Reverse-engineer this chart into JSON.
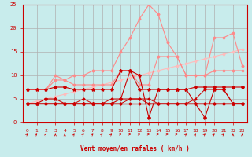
{
  "x": [
    0,
    1,
    2,
    3,
    4,
    5,
    6,
    7,
    8,
    9,
    10,
    11,
    12,
    13,
    14,
    15,
    16,
    17,
    18,
    19,
    20,
    21,
    22,
    23
  ],
  "line1": [
    4,
    4,
    4,
    4,
    4,
    4,
    4,
    4,
    4,
    4,
    4,
    4,
    4,
    4,
    4,
    4,
    4,
    4,
    4,
    4,
    4,
    4,
    4,
    4
  ],
  "line2": [
    7,
    7,
    7,
    7.5,
    7.5,
    7,
    7,
    7,
    7,
    7,
    11,
    11,
    7,
    7,
    7,
    7,
    7,
    7,
    7.5,
    7.5,
    7.5,
    7.5,
    7.5,
    7.5
  ],
  "line3": [
    4,
    4,
    5,
    5,
    4,
    4,
    4,
    4,
    4,
    4,
    5,
    11,
    10,
    1,
    7,
    7,
    7,
    7,
    4,
    1,
    7,
    7,
    4,
    4
  ],
  "line4": [
    4,
    4,
    4,
    4,
    4,
    4,
    4,
    4,
    4,
    4,
    4,
    5,
    5,
    4,
    4,
    4,
    4,
    4,
    4,
    4,
    4,
    4,
    4,
    4
  ],
  "line5": [
    4,
    4,
    4,
    4,
    4,
    4,
    5,
    4,
    4,
    5,
    5,
    5,
    5,
    5,
    4,
    4,
    4,
    4,
    5,
    7,
    7,
    7,
    4,
    4
  ],
  "line_pink1": [
    7,
    7,
    7,
    9,
    9,
    10,
    10,
    11,
    11,
    11,
    15,
    18,
    22,
    25,
    23,
    17,
    14,
    10,
    10,
    10,
    11,
    11,
    11,
    11
  ],
  "line_pink2": [
    7,
    7,
    7,
    10,
    9,
    8,
    8,
    8,
    8,
    8,
    11,
    11,
    8,
    8,
    14,
    14,
    14,
    10,
    10,
    10,
    18,
    18,
    19,
    12
  ],
  "line_pink_diag": [
    4,
    4.5,
    5,
    5.5,
    6,
    6.5,
    7,
    7.5,
    8,
    8.5,
    9,
    9.5,
    10,
    10.5,
    11,
    11.5,
    12,
    12.5,
    13,
    13.5,
    14,
    14.5,
    15,
    15.5
  ],
  "wind_angles": [
    225,
    225,
    210,
    180,
    180,
    210,
    225,
    225,
    225,
    225,
    270,
    270,
    270,
    270,
    270,
    270,
    270,
    225,
    210,
    225,
    225,
    225,
    180,
    180
  ],
  "xlabel": "Vent moyen/en rafales ( km/h )",
  "xlim": [
    -0.5,
    23.5
  ],
  "ylim": [
    0,
    25
  ],
  "yticks": [
    0,
    5,
    10,
    15,
    20,
    25
  ],
  "xticks": [
    0,
    1,
    2,
    3,
    4,
    5,
    6,
    7,
    8,
    9,
    10,
    11,
    12,
    13,
    14,
    15,
    16,
    17,
    18,
    19,
    20,
    21,
    22,
    23
  ],
  "bg_color": "#c8ecec",
  "grid_color": "#b0b0b0",
  "color_dark_red": "#cc0000",
  "color_red": "#dd0000",
  "color_pink": "#ff8888",
  "color_pink2": "#ffbbbb"
}
